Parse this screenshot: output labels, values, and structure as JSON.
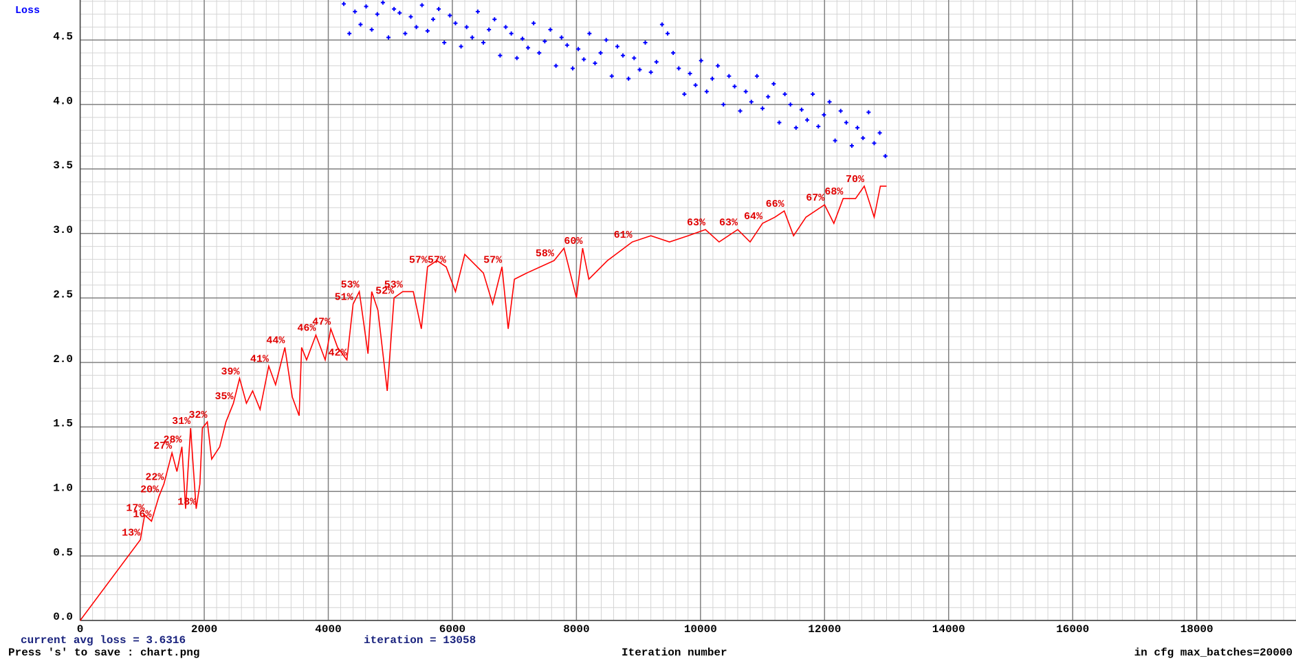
{
  "chart_data": {
    "type": "scatter",
    "ylabel": "Loss",
    "xlabel": "Iteration number",
    "status": {
      "avg_loss": "current avg loss = 3.6316",
      "iteration": "iteration = 13058",
      "save_hint": "Press 's' to save : chart.png",
      "max_batches": "in cfg max_batches=20000"
    },
    "xlim": [
      0,
      19600
    ],
    "ylim": [
      0,
      4.81
    ],
    "y2lim": [
      0,
      100
    ],
    "xticks": [
      0,
      2000,
      4000,
      6000,
      8000,
      10000,
      12000,
      14000,
      16000,
      18000
    ],
    "yticks": [
      {
        "value": 0,
        "label": "0.0"
      },
      {
        "value": 0.5,
        "label": "0.5"
      },
      {
        "value": 1,
        "label": "1.0"
      },
      {
        "value": 1.5,
        "label": "1.5"
      },
      {
        "value": 2,
        "label": "2.0"
      },
      {
        "value": 2.5,
        "label": "2.5"
      },
      {
        "value": 3,
        "label": "3.0"
      },
      {
        "value": 3.5,
        "label": "3.5"
      },
      {
        "value": 4,
        "label": "4.0"
      },
      {
        "value": 4.5,
        "label": "4.5"
      }
    ],
    "grid": true,
    "series": [
      {
        "type": "scatter",
        "color": "#0000ff",
        "x": [
          4250,
          4340,
          4430,
          4520,
          4610,
          4700,
          4790,
          4880,
          4970,
          5060,
          5150,
          5240,
          5330,
          5420,
          5510,
          5600,
          5690,
          5780,
          5870,
          5960,
          6050,
          6140,
          6230,
          6320,
          6410,
          6500,
          6590,
          6680,
          6770,
          6860,
          6950,
          7040,
          7130,
          7220,
          7310,
          7400,
          7490,
          7580,
          7670,
          7760,
          7850,
          7940,
          8030,
          8120,
          8210,
          8300,
          8390,
          8480,
          8570,
          8660,
          8750,
          8840,
          8930,
          9020,
          9110,
          9200,
          9290,
          9380,
          9470,
          9560,
          9650,
          9740,
          9830,
          9920,
          10010,
          10100,
          10190,
          10280,
          10370,
          10460,
          10550,
          10640,
          10730,
          10820,
          10910,
          11000,
          11090,
          11180,
          11270,
          11360,
          11450,
          11540,
          11630,
          11720,
          11810,
          11900,
          11990,
          12080,
          12170,
          12260,
          12350,
          12440,
          12530,
          12620,
          12710,
          12800,
          12890,
          12980
        ],
        "values": [
          4.78,
          4.55,
          4.72,
          4.62,
          4.76,
          4.58,
          4.7,
          4.79,
          4.52,
          4.74,
          4.71,
          4.55,
          4.68,
          4.6,
          4.77,
          4.57,
          4.66,
          4.74,
          4.48,
          4.69,
          4.63,
          4.45,
          4.6,
          4.52,
          4.72,
          4.48,
          4.58,
          4.66,
          4.38,
          4.6,
          4.55,
          4.36,
          4.51,
          4.44,
          4.63,
          4.4,
          4.49,
          4.58,
          4.3,
          4.52,
          4.46,
          4.28,
          4.43,
          4.35,
          4.55,
          4.32,
          4.4,
          4.5,
          4.22,
          4.45,
          4.38,
          4.2,
          4.36,
          4.27,
          4.48,
          4.25,
          4.33,
          4.62,
          4.55,
          4.4,
          4.28,
          4.08,
          4.24,
          4.15,
          4.34,
          4.1,
          4.2,
          4.3,
          4.0,
          4.22,
          4.14,
          3.95,
          4.1,
          4.02,
          4.22,
          3.97,
          4.06,
          4.16,
          3.86,
          4.08,
          4.0,
          3.82,
          3.96,
          3.88,
          4.08,
          3.83,
          3.92,
          4.02,
          3.72,
          3.95,
          3.86,
          3.68,
          3.82,
          3.74,
          3.94,
          3.7,
          3.78,
          3.6
        ]
      },
      {
        "type": "line",
        "color": "#ff0000",
        "axis": "y2",
        "x": [
          0,
          970,
          1040,
          1150,
          1270,
          1350,
          1480,
          1560,
          1640,
          1700,
          1780,
          1870,
          1930,
          1970,
          2050,
          2120,
          2250,
          2350,
          2470,
          2570,
          2680,
          2780,
          2900,
          3040,
          3150,
          3300,
          3420,
          3530,
          3570,
          3650,
          3800,
          3950,
          4040,
          4150,
          4300,
          4400,
          4500,
          4640,
          4700,
          4800,
          4950,
          5060,
          5200,
          5370,
          5500,
          5600,
          5750,
          5900,
          6050,
          6200,
          6500,
          6650,
          6800,
          6900,
          7000,
          7200,
          7640,
          7800,
          8000,
          8100,
          8200,
          8500,
          8900,
          9200,
          9500,
          9800,
          10080,
          10300,
          10600,
          10800,
          11000,
          11200,
          11350,
          11500,
          11700,
          12000,
          12150,
          12300,
          12500,
          12640,
          12800,
          12900,
          13000
        ],
        "values": [
          0,
          13,
          17,
          16,
          20,
          22,
          27,
          24,
          28,
          18,
          31,
          18,
          22,
          31,
          32,
          26,
          28,
          32,
          35,
          39,
          35,
          37,
          34,
          41,
          38,
          44,
          36,
          33,
          44,
          42,
          46,
          42,
          47,
          44,
          42,
          51,
          53,
          43,
          53,
          50,
          37,
          52,
          53,
          53,
          47,
          57,
          58,
          57,
          53,
          59,
          56,
          51,
          57,
          47,
          55,
          56,
          58,
          60,
          52,
          60,
          55,
          58,
          61,
          62,
          61,
          62,
          63,
          61,
          63,
          61,
          64,
          65,
          66,
          62,
          65,
          67,
          64,
          68,
          68,
          70,
          65,
          70,
          70
        ],
        "value_labels": [
          null,
          "13%",
          "17%",
          "16%",
          "20%",
          "22%",
          "27%",
          null,
          "28%",
          null,
          "31%",
          "18%",
          null,
          null,
          "32%",
          null,
          null,
          null,
          "35%",
          "39%",
          null,
          null,
          null,
          "41%",
          null,
          "44%",
          null,
          null,
          null,
          null,
          "46%",
          null,
          "47%",
          null,
          "42%",
          "51%",
          "53%",
          null,
          null,
          null,
          null,
          "52%",
          "53%",
          null,
          null,
          "57%",
          null,
          "57%",
          null,
          null,
          null,
          null,
          "57%",
          null,
          null,
          null,
          "58%",
          null,
          null,
          "60%",
          null,
          null,
          "61%",
          null,
          null,
          null,
          "63%",
          null,
          "63%",
          null,
          "64%",
          null,
          "66%",
          null,
          null,
          "67%",
          null,
          "68%",
          null,
          "70%",
          null,
          null,
          null
        ]
      }
    ]
  }
}
